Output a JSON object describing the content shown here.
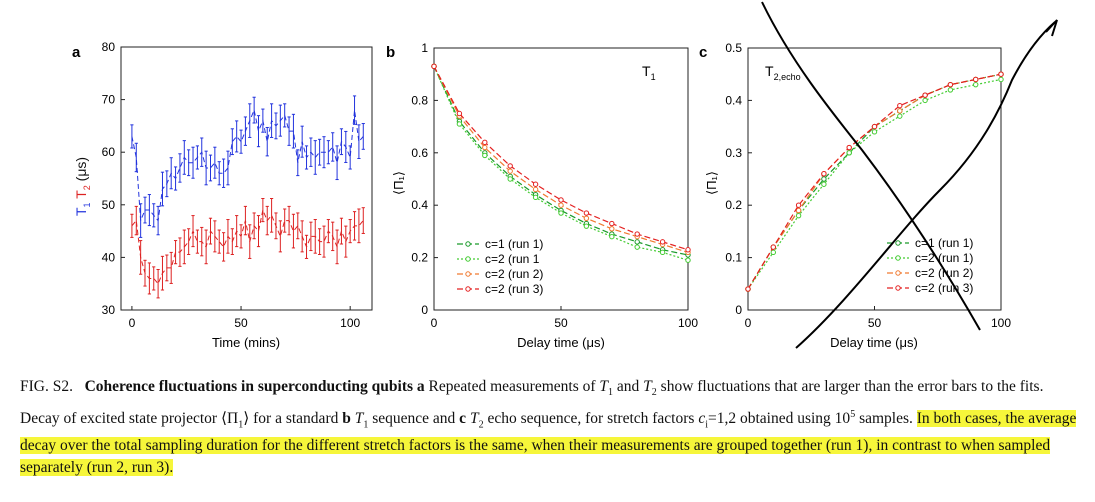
{
  "panels": {
    "a": {
      "letter": "a",
      "xlabel": "Time (mins)",
      "ylabel_t1": "T",
      "ylabel_t1_sub": "1",
      "ylabel_t2": "T",
      "ylabel_t2_sub": "2",
      "ylabel_unit": "(μs)",
      "xticks": [
        "0",
        "50",
        "100"
      ],
      "yticks": [
        "30",
        "40",
        "50",
        "60",
        "70",
        "80"
      ]
    },
    "b": {
      "letter": "b",
      "xlabel": "Delay time (μs)",
      "ylabel": "⟨Π₁⟩",
      "annotation": "T",
      "annotation_sub": "1",
      "xticks": [
        "0",
        "50",
        "100"
      ],
      "yticks": [
        "0",
        "0.2",
        "0.4",
        "0.6",
        "0.8",
        "1"
      ],
      "legend": [
        "c=1 (run 1)",
        "c=2 (run 1",
        "c=2 (run 2)",
        "c=2 (run 3)"
      ]
    },
    "c": {
      "letter": "c",
      "xlabel": "Delay time (μs)",
      "ylabel": "⟨Π₁⟩",
      "annotation": "T",
      "annotation_sub": "2,echo",
      "xticks": [
        "0",
        "50",
        "100"
      ],
      "yticks": [
        "0",
        "0.1",
        "0.2",
        "0.3",
        "0.4",
        "0.5"
      ],
      "legend": [
        "c=1 (run 1)",
        "c=2 (run 1)",
        "c=2 (run 2)",
        "c=2 (run 3)"
      ]
    }
  },
  "colors": {
    "t1": "#2233dd",
    "t2": "#dd2222",
    "green": "#1a9a2a",
    "lightgreen": "#44cc33",
    "orange": "#f07a30",
    "red": "#e42020",
    "highlight": "#f6f63a"
  },
  "caption": {
    "label": "FIG. S2.",
    "bold_title": "Coherence fluctuations in superconducting qubits a",
    "part1": " Repeated measurements of ",
    "t1": "T",
    "t1_sub": "1",
    "and": " and ",
    "t2": "T",
    "t2_sub": "2",
    "part2": " show fluctuations that are larger than the error bars to the fits. Decay of excited state projector ⟨Π",
    "pi_sub": "1",
    "part3": "⟩ for a standard ",
    "b": "b",
    "part4": " ",
    "t1b": "T",
    "t1b_sub": "1",
    "part5": " sequence and ",
    "c": "c",
    "part6": " ",
    "t2b": "T",
    "t2b_sub": "2",
    "part7": " echo sequence, for stretch factors ",
    "ci": "c",
    "ci_sub": "i",
    "part8": "=1,2 obtained using 10",
    "sup5": "5",
    "part9": " samples. ",
    "highlighted": "In both cases, the average decay over the total sampling duration for the different stretch factors is the same, when their measurements are grouped together (run 1), in contrast to when sampled separately (run 2, run 3)."
  },
  "chart_data": [
    {
      "type": "scatter",
      "title": "",
      "xlabel": "Time (mins)",
      "ylabel": "T1 T2 (μs)",
      "xlim": [
        -5,
        110
      ],
      "ylim": [
        30,
        80
      ],
      "series": [
        {
          "name": "T1",
          "x": [
            0,
            2,
            4,
            6,
            8,
            10,
            12,
            14,
            16,
            18,
            20,
            22,
            24,
            26,
            28,
            30,
            32,
            34,
            36,
            38,
            40,
            42,
            44,
            46,
            48,
            50,
            52,
            54,
            56,
            58,
            60,
            62,
            64,
            66,
            68,
            70,
            72,
            74,
            76,
            78,
            80,
            82,
            84,
            86,
            88,
            90,
            92,
            94,
            96,
            98,
            100,
            102,
            104,
            106
          ],
          "y": [
            63,
            59,
            47,
            49,
            49,
            48,
            47,
            53,
            54,
            56,
            55,
            57,
            59,
            58,
            58,
            59,
            60,
            57,
            57,
            58,
            56,
            56,
            57,
            62,
            63,
            62,
            64,
            66,
            68,
            64,
            66,
            62,
            66,
            65,
            66,
            67,
            64,
            64,
            58,
            62,
            59,
            60,
            59,
            60,
            60,
            60,
            61,
            58,
            62,
            61,
            59,
            68,
            62,
            63
          ]
        },
        {
          "name": "T2",
          "x": [
            0,
            2,
            4,
            6,
            8,
            10,
            12,
            14,
            16,
            18,
            20,
            22,
            24,
            26,
            28,
            30,
            32,
            34,
            36,
            38,
            40,
            42,
            44,
            46,
            48,
            50,
            52,
            54,
            56,
            58,
            60,
            62,
            64,
            66,
            68,
            70,
            72,
            74,
            76,
            78,
            80,
            82,
            84,
            86,
            88,
            90,
            92,
            94,
            96,
            98,
            100,
            102,
            104,
            106
          ],
          "y": [
            46,
            47,
            40,
            37,
            36,
            36,
            35,
            37,
            38,
            38,
            41,
            41,
            42,
            43,
            45,
            43,
            43,
            42,
            45,
            44,
            43,
            42,
            44,
            43,
            45,
            44,
            47,
            43,
            46,
            45,
            49,
            47,
            48,
            46,
            44,
            47,
            47,
            45,
            46,
            44,
            42,
            44,
            44,
            43,
            43,
            45,
            44,
            42,
            45,
            43,
            45,
            46,
            46,
            47
          ]
        }
      ]
    },
    {
      "type": "line",
      "title": "",
      "xlabel": "Delay time (μs)",
      "ylabel": "⟨Π₁⟩",
      "xlim": [
        0,
        100
      ],
      "ylim": [
        0,
        1
      ],
      "x": [
        0,
        10,
        20,
        30,
        40,
        50,
        60,
        70,
        80,
        90,
        100
      ],
      "series": [
        {
          "name": "c=1 (run 1)",
          "values": [
            0.93,
            0.72,
            0.6,
            0.51,
            0.44,
            0.38,
            0.33,
            0.29,
            0.26,
            0.23,
            0.21
          ]
        },
        {
          "name": "c=2 (run 1",
          "values": [
            0.93,
            0.71,
            0.59,
            0.5,
            0.43,
            0.37,
            0.32,
            0.28,
            0.24,
            0.22,
            0.19
          ]
        },
        {
          "name": "c=2 (run 2)",
          "values": [
            0.93,
            0.74,
            0.62,
            0.53,
            0.46,
            0.4,
            0.35,
            0.31,
            0.28,
            0.25,
            0.22
          ]
        },
        {
          "name": "c=2 (run 3)",
          "values": [
            0.93,
            0.75,
            0.64,
            0.55,
            0.48,
            0.42,
            0.37,
            0.33,
            0.29,
            0.26,
            0.23
          ]
        }
      ]
    },
    {
      "type": "line",
      "title": "",
      "xlabel": "Delay time (μs)",
      "ylabel": "⟨Π₁⟩",
      "xlim": [
        0,
        100
      ],
      "ylim": [
        0,
        0.5
      ],
      "x": [
        0,
        10,
        20,
        30,
        40,
        50,
        60,
        70,
        80,
        90,
        100
      ],
      "series": [
        {
          "name": "c=1 (run 1)",
          "values": [
            0.04,
            0.12,
            0.19,
            0.25,
            0.3,
            0.35,
            0.38,
            0.41,
            0.43,
            0.44,
            0.45
          ]
        },
        {
          "name": "c=2 (run 1)",
          "values": [
            0.04,
            0.11,
            0.18,
            0.24,
            0.3,
            0.34,
            0.37,
            0.4,
            0.42,
            0.43,
            0.44
          ]
        },
        {
          "name": "c=2 (run 2)",
          "values": [
            0.04,
            0.12,
            0.19,
            0.26,
            0.31,
            0.35,
            0.38,
            0.41,
            0.43,
            0.44,
            0.45
          ]
        },
        {
          "name": "c=2 (run 3)",
          "values": [
            0.04,
            0.12,
            0.2,
            0.26,
            0.31,
            0.35,
            0.39,
            0.41,
            0.43,
            0.44,
            0.45
          ]
        }
      ]
    }
  ]
}
